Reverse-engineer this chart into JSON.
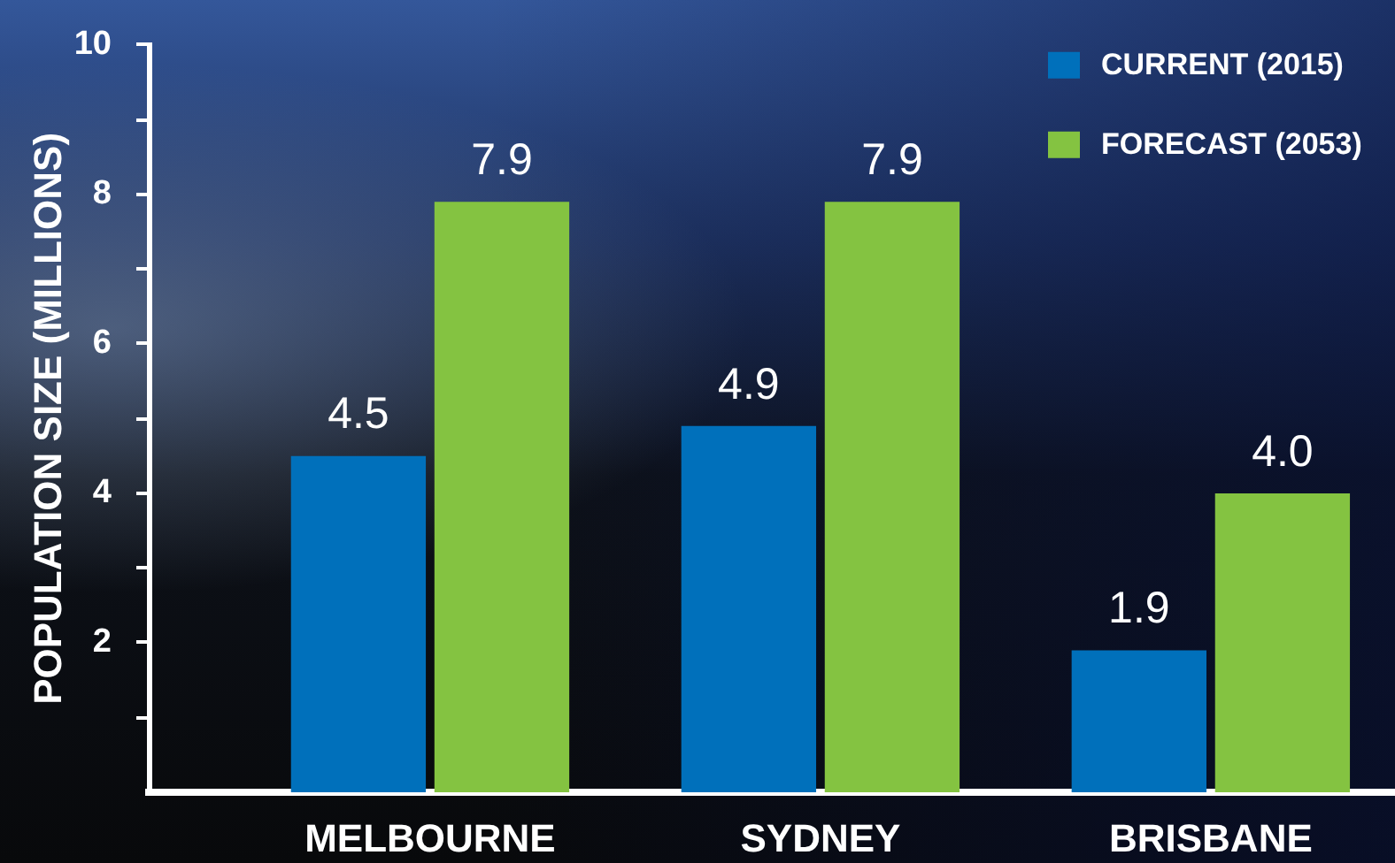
{
  "chart_data": {
    "type": "bar",
    "ylabel": "POPULATION SIZE (MILLIONS)",
    "categories": [
      "MELBOURNE",
      "SYDNEY",
      "BRISBANE"
    ],
    "series": [
      {
        "name": "CURRENT (2015)",
        "color": "#0070bb",
        "values": [
          4.5,
          4.9,
          1.9
        ],
        "value_labels": [
          "4.5",
          "4.9",
          "1.9"
        ]
      },
      {
        "name": "FORECAST (2053)",
        "color": "#84c341",
        "values": [
          7.9,
          7.9,
          4.0
        ],
        "value_labels": [
          "7.9",
          "7.9",
          "4.0"
        ]
      }
    ],
    "ylim": [
      0,
      10
    ],
    "yticks": [
      {
        "value": 1,
        "label": null
      },
      2,
      {
        "value": 3,
        "label": null
      },
      4,
      {
        "value": 5,
        "label": null
      },
      6,
      {
        "value": 7,
        "label": null
      },
      8,
      {
        "value": 9,
        "label": null
      },
      10
    ],
    "grid": false,
    "legend": "top right"
  }
}
